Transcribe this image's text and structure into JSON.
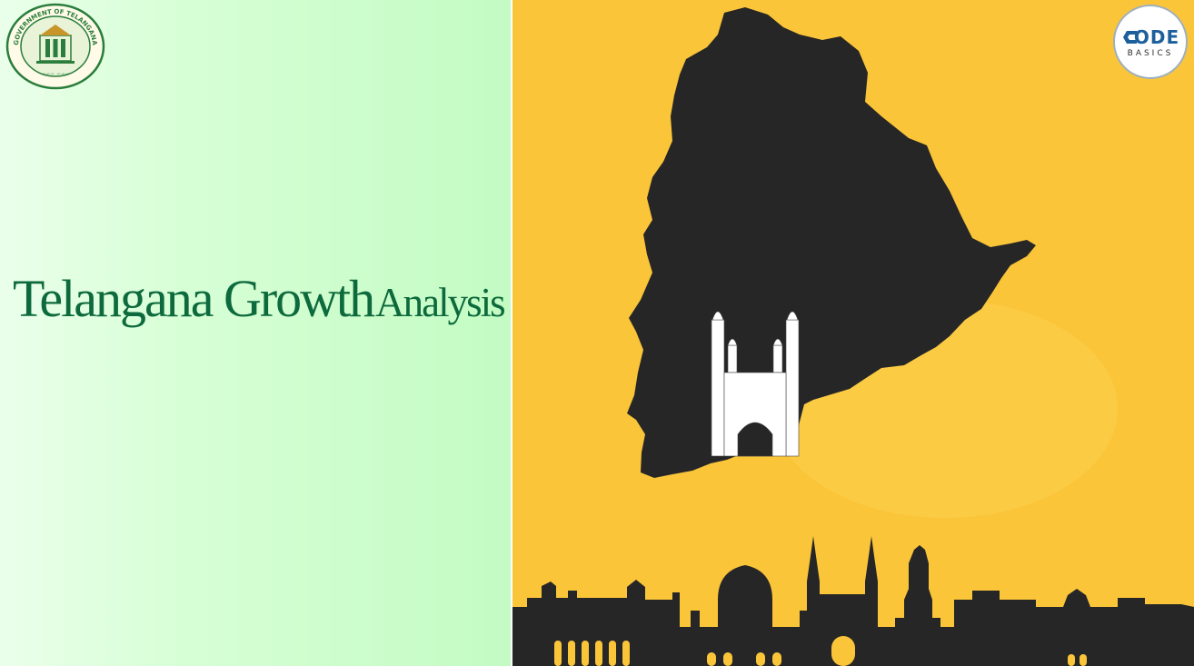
{
  "title": {
    "part1": "Telangana Growth",
    "part2": "Analysis"
  },
  "seal": {
    "top_text": "GOVERNMENT OF TELANGANA",
    "icon": "state-emblem-seal"
  },
  "brand_logo": {
    "code": "ODE",
    "basics": "BASICS",
    "icon": "codebasics-logo"
  },
  "colors": {
    "title": "#0d6a3d",
    "background_right": "#fbc53a",
    "map": "#262626",
    "monument": "#ffffff"
  }
}
